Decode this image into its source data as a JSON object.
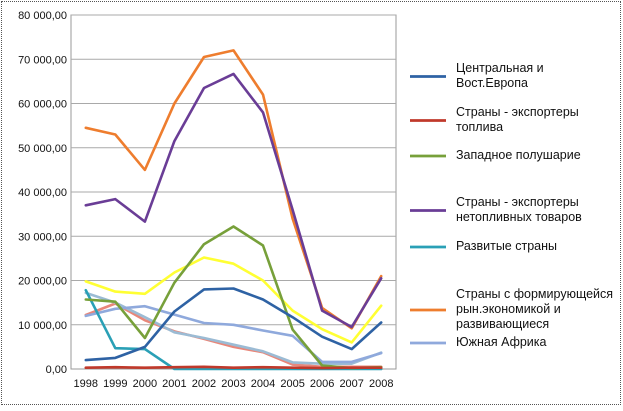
{
  "chart_data": {
    "type": "line",
    "title": "",
    "xlabel": "",
    "ylabel": "",
    "x": [
      "1998",
      "1999",
      "2000",
      "2001",
      "2002",
      "2003",
      "2004",
      "2005",
      "2006",
      "2007",
      "2008"
    ],
    "ylim": [
      0,
      80000
    ],
    "yticks": [
      {
        "value": 0,
        "label": "0,00"
      },
      {
        "value": 10000,
        "label": "10 000,00"
      },
      {
        "value": 20000,
        "label": "20 000,00"
      },
      {
        "value": 30000,
        "label": "30 000,00"
      },
      {
        "value": 40000,
        "label": "40 000,00"
      },
      {
        "value": 50000,
        "label": "50 000,00"
      },
      {
        "value": 60000,
        "label": "60 000,00"
      },
      {
        "value": 70000,
        "label": "70 000,00"
      },
      {
        "value": 80000,
        "label": "80 000,00"
      }
    ],
    "grid": true,
    "legend_position": "right",
    "series": [
      {
        "name": "Центральная и Вост.Европа",
        "legend_lines": [
          "Центральная и",
          "Вост.Европа"
        ],
        "color": "#2e62a4",
        "values": [
          2000,
          2500,
          5000,
          13000,
          18000,
          18200,
          15700,
          11700,
          7300,
          4500,
          10500
        ]
      },
      {
        "name": "Страны - экспортеры топлива",
        "legend_lines": [
          "Страны - экспортеры",
          "топлива"
        ],
        "color": "#c0392b",
        "values": [
          300,
          400,
          300,
          400,
          500,
          300,
          400,
          300,
          200,
          300,
          300
        ]
      },
      {
        "name": "Западное полушарие",
        "legend_lines": [
          "Западное полушарие"
        ],
        "color": "#77a03a",
        "values": [
          15700,
          15200,
          7000,
          19500,
          28200,
          32200,
          27900,
          8900,
          800,
          200,
          400
        ]
      },
      {
        "name": "Страны - экспортеры нетопливных товаров",
        "legend_lines": [
          "Страны - экспортеры",
          "нетопливных товаров"
        ],
        "color": "#6a3d96",
        "values": [
          37000,
          38400,
          33300,
          51500,
          63500,
          66700,
          58000,
          36000,
          13200,
          9500,
          20500
        ]
      },
      {
        "name": "Развитые страны",
        "legend_lines": [
          "Развитые страны"
        ],
        "color": "#2aa0b6",
        "values": [
          17800,
          4700,
          4500,
          0,
          0,
          0,
          0,
          0,
          0,
          0,
          0
        ]
      },
      {
        "name": "Страны с формирующейся рын.экономикой и развивающиеся",
        "legend_lines": [
          "Страны с формирующейся",
          "рын.экономикой и",
          "развивающиеся"
        ],
        "color": "#ee7d2e",
        "values": [
          54500,
          53000,
          45000,
          60000,
          70500,
          72000,
          62000,
          34000,
          13800,
          9200,
          21000
        ]
      },
      {
        "name": "Южная Африка",
        "legend_lines": [
          "Южная Африка"
        ],
        "color": "#8fa9dc",
        "values": [
          12000,
          13600,
          14200,
          12300,
          10400,
          10000,
          8700,
          7500,
          1600,
          1600,
          3600
        ]
      },
      {
        "name": "",
        "legend_lines": [],
        "color": "#ffff33",
        "values": [
          19800,
          17500,
          17000,
          21800,
          25200,
          23800,
          20000,
          13200,
          9000,
          6000,
          14300
        ]
      },
      {
        "name": "",
        "legend_lines": [],
        "color": "#9bbbd4",
        "values": [
          17200,
          15000,
          11700,
          8300,
          7000,
          5500,
          4000,
          1500,
          1200,
          1200,
          3700
        ]
      },
      {
        "name": "",
        "legend_lines": [],
        "color": "#e8877a",
        "values": [
          12200,
          14800,
          11000,
          8500,
          6800,
          5000,
          3800,
          1000,
          500,
          500,
          500
        ]
      }
    ]
  }
}
